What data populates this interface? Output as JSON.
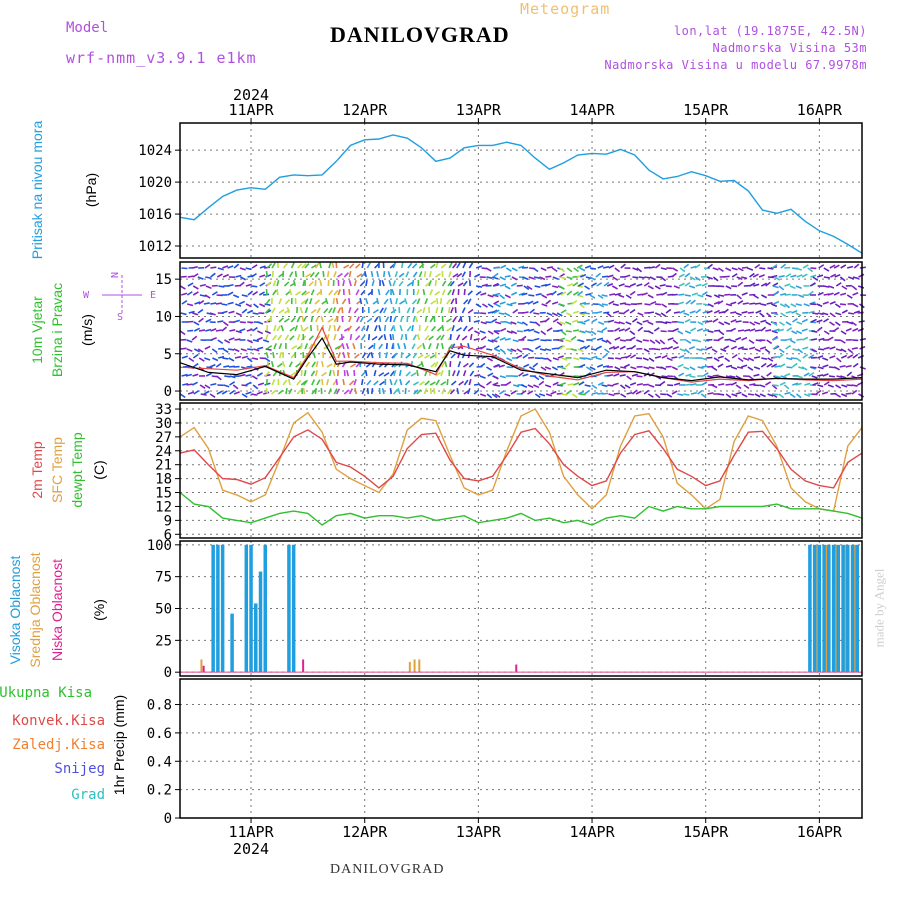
{
  "header": {
    "title": "DANILOVGRAD",
    "meteogram_label": "Meteogram",
    "model_label": "Model",
    "model_name": "wrf-nmm_v3.9.1 e1km",
    "info_line1": "lon,lat (19.1875E, 42.5N)",
    "info_line2": "Nadmorska Visina 53m",
    "info_line3": "Nadmorska Visina u modelu 67.9978m",
    "bottom_title": "DANILOVGRAD",
    "credit": "made by Angel"
  },
  "time_axis": {
    "year": "2024",
    "day_labels": [
      "11APR",
      "12APR",
      "13APR",
      "14APR",
      "15APR",
      "16APR"
    ]
  },
  "colors": {
    "pressure": "#1f9ee0",
    "temp2m": "#e04848",
    "sfc": "#e0a040",
    "dewpt": "#30c030",
    "high_cloud": "#1f9ee0",
    "mid_cloud": "#e0a040",
    "low_cloud": "#e02090",
    "wind_speed": "#000000",
    "gust": "#e04848"
  },
  "chart_data": [
    {
      "type": "line",
      "panel": "pressure",
      "ylabel_main": "Pritisak na nivou mora",
      "ylabel_unit": "(hPa)",
      "yticks": [
        1012,
        1016,
        1020,
        1024
      ],
      "ylim": [
        1010.5,
        1027.4
      ],
      "x_hours": [
        0,
        3,
        6,
        9,
        12,
        15,
        18,
        21,
        24,
        27,
        30,
        33,
        36,
        39,
        42,
        45,
        48,
        51,
        54,
        57,
        60,
        63,
        66,
        69,
        72,
        75,
        78,
        81,
        84,
        87,
        90,
        93,
        96,
        99,
        102,
        105,
        108,
        111,
        114,
        117,
        120,
        123,
        126,
        129,
        132,
        135,
        138,
        141,
        144
      ],
      "series": [
        {
          "name": "pressure",
          "values": [
            1015.6,
            1015.3,
            1016.8,
            1018.2,
            1019.0,
            1019.3,
            1019.1,
            1020.6,
            1020.9,
            1020.8,
            1020.9,
            1022.6,
            1024.6,
            1025.3,
            1025.4,
            1025.9,
            1025.5,
            1024.3,
            1022.6,
            1023.0,
            1024.3,
            1024.6,
            1024.6,
            1025.0,
            1024.6,
            1023.0,
            1021.6,
            1022.4,
            1023.4,
            1023.6,
            1023.5,
            1024.1,
            1023.4,
            1021.5,
            1020.4,
            1020.7,
            1021.3,
            1020.8,
            1020.1,
            1020.2,
            1018.9,
            1016.5,
            1016.1,
            1016.6,
            1015.1,
            1013.9,
            1013.2,
            1012.2,
            1011.1
          ]
        }
      ]
    },
    {
      "type": "line",
      "panel": "wind",
      "ylabel_main": "10m Vjetar",
      "ylabel_sub": "Brzina i Pravac",
      "ylabel_unit": "(m/s)",
      "compass_labels": [
        "N",
        "E",
        "S",
        "W"
      ],
      "yticks": [
        0,
        5,
        10,
        15
      ],
      "ylim": [
        -1.2,
        17.3
      ],
      "x_hours": [
        0,
        6,
        12,
        18,
        24,
        27,
        30,
        33,
        36,
        42,
        48,
        54,
        57,
        60,
        66,
        72,
        78,
        84,
        90,
        96,
        102,
        108,
        114,
        120,
        126,
        132,
        138,
        144
      ],
      "series": [
        {
          "name": "speed",
          "values": [
            3.8,
            2.5,
            2.2,
            3.3,
            1.6,
            4.5,
            7.1,
            3.6,
            3.9,
            3.6,
            3.5,
            2.6,
            5.4,
            4.8,
            4.6,
            2.8,
            2.3,
            1.8,
            2.8,
            2.6,
            1.8,
            1.4,
            1.9,
            1.5,
            1.7,
            1.6,
            1.6,
            1.8
          ]
        },
        {
          "name": "gust",
          "values": [
            3.2,
            3.0,
            2.8,
            3.4,
            1.8,
            4.8,
            8.5,
            4.0,
            4.0,
            3.8,
            3.7,
            2.2,
            5.8,
            6.0,
            4.8,
            3.0,
            2.0,
            1.5,
            2.5,
            2.6,
            1.8,
            1.2,
            1.6,
            1.4,
            1.7,
            1.5,
            1.4,
            1.6
          ]
        }
      ]
    },
    {
      "type": "line",
      "panel": "temperature",
      "ylabel_main": "2m Temp",
      "ylabel_sub": "SFC Temp",
      "ylabel_sub2": "dewpt Temp",
      "ylabel_unit": "(C)",
      "yticks": [
        6,
        9,
        12,
        15,
        18,
        21,
        24,
        27,
        30,
        33
      ],
      "ylim": [
        5.2,
        34.3
      ],
      "x_hours": [
        0,
        3,
        6,
        9,
        12,
        15,
        18,
        21,
        24,
        27,
        30,
        33,
        36,
        39,
        42,
        45,
        48,
        51,
        54,
        57,
        60,
        63,
        66,
        69,
        72,
        75,
        78,
        81,
        84,
        87,
        90,
        93,
        96,
        99,
        102,
        105,
        108,
        111,
        114,
        117,
        120,
        123,
        126,
        129,
        132,
        135,
        138,
        141,
        144
      ],
      "series": [
        {
          "name": "2m temp",
          "values": [
            23.5,
            24.2,
            21.0,
            18.0,
            17.8,
            16.8,
            18.2,
            22.5,
            27.0,
            28.5,
            26.5,
            21.5,
            20.5,
            18.5,
            16.0,
            18.5,
            24.5,
            27.5,
            27.8,
            22.0,
            18.0,
            17.5,
            18.5,
            23.0,
            28.0,
            28.8,
            25.5,
            21.0,
            18.5,
            16.5,
            17.5,
            23.5,
            27.5,
            28.3,
            24.5,
            20.0,
            18.5,
            16.5,
            17.5,
            23.0,
            28.0,
            28.2,
            24.5,
            20.0,
            17.5,
            16.5,
            16.0,
            21.5,
            23.5
          ]
        },
        {
          "name": "sfc temp",
          "values": [
            27.0,
            29.0,
            24.5,
            15.5,
            14.5,
            13.0,
            14.5,
            22.0,
            30.0,
            32.2,
            28.0,
            20.0,
            18.0,
            16.5,
            15.0,
            19.0,
            28.5,
            31.0,
            30.5,
            23.0,
            16.0,
            14.5,
            15.5,
            24.0,
            31.5,
            33.0,
            28.0,
            18.5,
            14.5,
            11.5,
            14.5,
            25.0,
            31.5,
            32.0,
            27.0,
            17.0,
            14.5,
            11.5,
            13.5,
            26.0,
            31.5,
            30.5,
            25.0,
            16.0,
            13.0,
            11.5,
            11.0,
            25.0,
            29.0
          ]
        },
        {
          "name": "dewpt temp",
          "values": [
            15.0,
            12.5,
            12.0,
            9.5,
            9.0,
            8.5,
            9.5,
            10.5,
            11.0,
            10.5,
            8.0,
            10.0,
            10.5,
            9.5,
            10.0,
            10.0,
            9.5,
            10.0,
            9.0,
            9.5,
            10.0,
            8.5,
            9.0,
            9.5,
            10.5,
            9.0,
            9.5,
            8.5,
            9.0,
            8.0,
            9.5,
            10.0,
            9.5,
            12.0,
            11.0,
            12.0,
            11.5,
            11.5,
            12.0,
            12.0,
            12.0,
            12.0,
            12.5,
            11.5,
            11.5,
            11.5,
            11.0,
            10.5,
            9.5
          ]
        }
      ]
    },
    {
      "type": "bar",
      "panel": "clouds",
      "ylabel_main": "Visoka Oblacnost",
      "ylabel_sub": "Srednja Oblacnost",
      "ylabel_sub2": "Niska Oblacnost",
      "ylabel_unit": "(%)",
      "yticks": [
        0,
        25,
        50,
        75,
        100
      ],
      "ylim": [
        -3,
        103
      ],
      "series": [
        {
          "name": "high",
          "x_hours": [
            7,
            8,
            9,
            11,
            14,
            15,
            16,
            17,
            18,
            23,
            24
          ],
          "values": [
            100,
            100,
            100,
            46,
            100,
            100,
            54,
            79,
            100,
            100,
            100
          ]
        },
        {
          "name": "mid",
          "x_hours": [
            4,
            48,
            49,
            50,
            134,
            136,
            138,
            140,
            142
          ],
          "values": [
            10,
            8,
            10,
            10,
            100,
            100,
            100,
            100,
            100
          ]
        },
        {
          "name": "low",
          "x_hours": [
            5,
            26,
            71
          ],
          "values": [
            5,
            10,
            6
          ]
        },
        {
          "name": "high-late",
          "x_hours": [
            133,
            134,
            135,
            136,
            137,
            138,
            139,
            140,
            141,
            142,
            143
          ],
          "values": [
            100,
            100,
            100,
            100,
            100,
            100,
            100,
            100,
            100,
            100,
            100
          ]
        }
      ]
    },
    {
      "type": "bar",
      "panel": "precip",
      "ylabel_main": "1hr Precip",
      "ylabel_unit": "(mm)",
      "legend": [
        "Ukupna Kisa",
        "Konvek.Kisa",
        "Zaledj.Kisa",
        "Snijeg",
        "Grad"
      ],
      "legend_colors": [
        "#30c030",
        "#e04848",
        "#f08030",
        "#5050e0",
        "#30c0c0"
      ],
      "yticks": [
        0,
        0.2,
        0.4,
        0.6,
        0.8
      ],
      "ylim": [
        0,
        0.98
      ],
      "series": []
    }
  ]
}
